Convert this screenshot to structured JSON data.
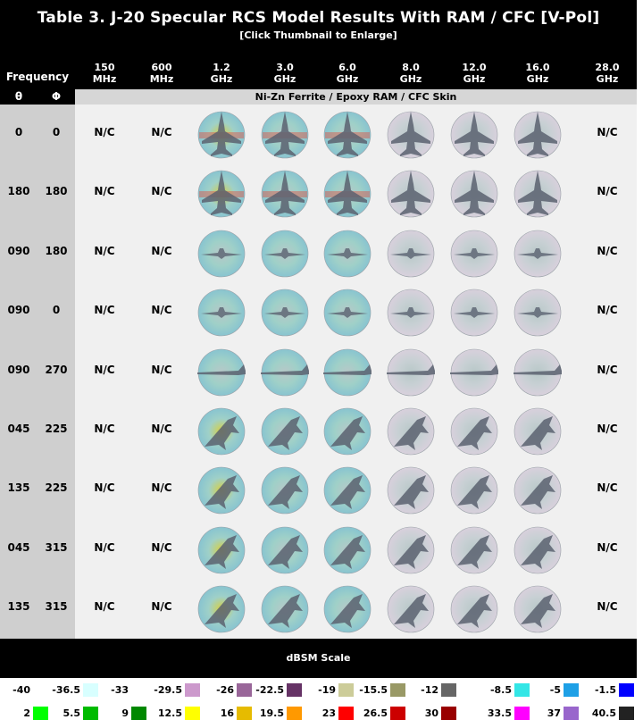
{
  "title": "Table 3. J-20 Specular RCS Model Results With RAM / CFC [V-Pol]",
  "subtitle": "[Click Thumbnail to Enlarge]",
  "frequency_label": "Frequency",
  "theta_label": "θ",
  "phi_label": "Φ",
  "material_label": "Ni-Zn Ferrite / Epoxy RAM / CFC Skin",
  "not_computed": "N/C",
  "columns": [
    {
      "value": "150",
      "unit": "MHz",
      "computed": false
    },
    {
      "value": "600",
      "unit": "MHz",
      "computed": false
    },
    {
      "value": "1.2",
      "unit": "GHz",
      "computed": true
    },
    {
      "value": "3.0",
      "unit": "GHz",
      "computed": true
    },
    {
      "value": "6.0",
      "unit": "GHz",
      "computed": true
    },
    {
      "value": "8.0",
      "unit": "GHz",
      "computed": true
    },
    {
      "value": "12.0",
      "unit": "GHz",
      "computed": true
    },
    {
      "value": "16.0",
      "unit": "GHz",
      "computed": true
    },
    {
      "value": "28.0",
      "unit": "GHz",
      "computed": false
    }
  ],
  "rows": [
    {
      "theta": "0",
      "phi": "0",
      "view": "top"
    },
    {
      "theta": "180",
      "phi": "180",
      "view": "top"
    },
    {
      "theta": "090",
      "phi": "180",
      "view": "front"
    },
    {
      "theta": "090",
      "phi": "0",
      "view": "front"
    },
    {
      "theta": "090",
      "phi": "270",
      "view": "side"
    },
    {
      "theta": "045",
      "phi": "225",
      "view": "oblique"
    },
    {
      "theta": "135",
      "phi": "225",
      "view": "oblique"
    },
    {
      "theta": "045",
      "phi": "315",
      "view": "oblique"
    },
    {
      "theta": "135",
      "phi": "315",
      "view": "oblique"
    }
  ],
  "scale_label": "dBSM Scale",
  "legend": [
    {
      "value": "-40",
      "color": "#ffffff"
    },
    {
      "value": "-36.5",
      "color": "#d8ffff"
    },
    {
      "value": "-33",
      "color": "#ffffff"
    },
    {
      "value": "-29.5",
      "color": "#cc99cc"
    },
    {
      "value": "-26",
      "color": "#996699"
    },
    {
      "value": "-22.5",
      "color": "#663366"
    },
    {
      "value": "-19",
      "color": "#cccc99"
    },
    {
      "value": "-15.5",
      "color": "#999966"
    },
    {
      "value": "-12",
      "color": "#666666"
    },
    {
      "value": "-8.5",
      "color": "#33e6e6"
    },
    {
      "value": "-5",
      "color": "#1ea0e6"
    },
    {
      "value": "-1.5",
      "color": "#0000ff"
    },
    {
      "value": "2",
      "color": "#00ff00"
    },
    {
      "value": "5.5",
      "color": "#00bb00"
    },
    {
      "value": "9",
      "color": "#008800"
    },
    {
      "value": "12.5",
      "color": "#ffff00"
    },
    {
      "value": "16",
      "color": "#e6bb00"
    },
    {
      "value": "19.5",
      "color": "#ff9900"
    },
    {
      "value": "23",
      "color": "#ff0000"
    },
    {
      "value": "26.5",
      "color": "#cc0000"
    },
    {
      "value": "30",
      "color": "#990000"
    },
    {
      "value": "33.5",
      "color": "#ff00ff"
    },
    {
      "value": "37",
      "color": "#9966cc"
    },
    {
      "value": "40.5",
      "color": "#222222"
    }
  ]
}
